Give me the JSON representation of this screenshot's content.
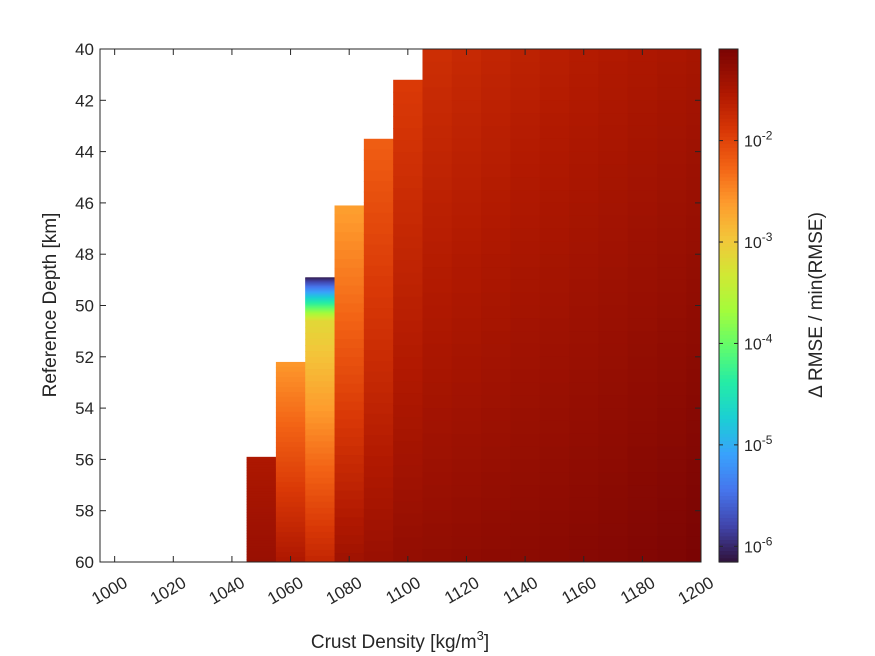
{
  "chart_data": {
    "type": "heatmap",
    "xlabel": "Crust Density [kg/m",
    "xlabel_sup": "3",
    "xlabel_end": "]",
    "ylabel": "Reference Depth [km]",
    "xlim": [
      995,
      1200
    ],
    "ylim": [
      40,
      60
    ],
    "y_reversed": true,
    "x_ticks": [
      1000,
      1020,
      1040,
      1060,
      1080,
      1100,
      1120,
      1140,
      1160,
      1180,
      1200
    ],
    "x_tick_labels": [
      "1000",
      "1020",
      "1040",
      "1060",
      "1080",
      "1100",
      "1120",
      "1140",
      "1160",
      "1180",
      "1200"
    ],
    "y_ticks": [
      40,
      42,
      44,
      46,
      48,
      50,
      52,
      54,
      56,
      58,
      60
    ],
    "y_tick_labels": [
      "40",
      "42",
      "44",
      "46",
      "48",
      "50",
      "52",
      "54",
      "56",
      "58",
      "60"
    ],
    "column_width": 10,
    "columns": [
      {
        "x_start": 1045,
        "depth_min": 55.9,
        "value_top": 0.03,
        "value_bottom": 0.045
      },
      {
        "x_start": 1055,
        "depth_min": 52.2,
        "value_top": 0.0025,
        "value_bottom": 0.03
      },
      {
        "x_start": 1065,
        "depth_min": 48.9,
        "value_top": 1e-06,
        "value_bottom": 0.02
      },
      {
        "x_start": 1075,
        "depth_min": 46.1,
        "value_top": 0.0022,
        "value_bottom": 0.04
      },
      {
        "x_start": 1085,
        "depth_min": 43.5,
        "value_top": 0.006,
        "value_bottom": 0.045
      },
      {
        "x_start": 1095,
        "depth_min": 41.2,
        "value_top": 0.012,
        "value_bottom": 0.05
      },
      {
        "x_start": 1105,
        "depth_min": 40,
        "value_top": 0.016,
        "value_bottom": 0.052
      },
      {
        "x_start": 1115,
        "depth_min": 40,
        "value_top": 0.018,
        "value_bottom": 0.054
      },
      {
        "x_start": 1125,
        "depth_min": 40,
        "value_top": 0.02,
        "value_bottom": 0.056
      },
      {
        "x_start": 1135,
        "depth_min": 40,
        "value_top": 0.022,
        "value_bottom": 0.058
      },
      {
        "x_start": 1145,
        "depth_min": 40,
        "value_top": 0.024,
        "value_bottom": 0.06
      },
      {
        "x_start": 1155,
        "depth_min": 40,
        "value_top": 0.026,
        "value_bottom": 0.063
      },
      {
        "x_start": 1165,
        "depth_min": 40,
        "value_top": 0.028,
        "value_bottom": 0.066
      },
      {
        "x_start": 1175,
        "depth_min": 40,
        "value_top": 0.03,
        "value_bottom": 0.07
      },
      {
        "x_start": 1185,
        "depth_min": 40,
        "value_top": 0.032,
        "value_bottom": 0.074
      },
      {
        "x_start": 1195,
        "depth_min": 40,
        "value_top": 0.034,
        "value_bottom": 0.08
      }
    ],
    "special_feature": {
      "x_start": 1065,
      "depth_from": 48.9,
      "depth_to": 50.6,
      "value_from": 8e-07,
      "value_to": 0.0007
    },
    "colorbar": {
      "label": "Δ RMSE / min(RMSE)",
      "scale": "log",
      "range": [
        7e-07,
        0.08
      ],
      "ticks": [
        {
          "value": 1e-06,
          "base": "10",
          "exp": "-6"
        },
        {
          "value": 1e-05,
          "base": "10",
          "exp": "-5"
        },
        {
          "value": 0.0001,
          "base": "10",
          "exp": "-4"
        },
        {
          "value": 0.001,
          "base": "10",
          "exp": "-3"
        },
        {
          "value": 0.01,
          "base": "10",
          "exp": "-2"
        }
      ],
      "colormap": "turbo"
    },
    "grid": false,
    "legend": "none"
  }
}
